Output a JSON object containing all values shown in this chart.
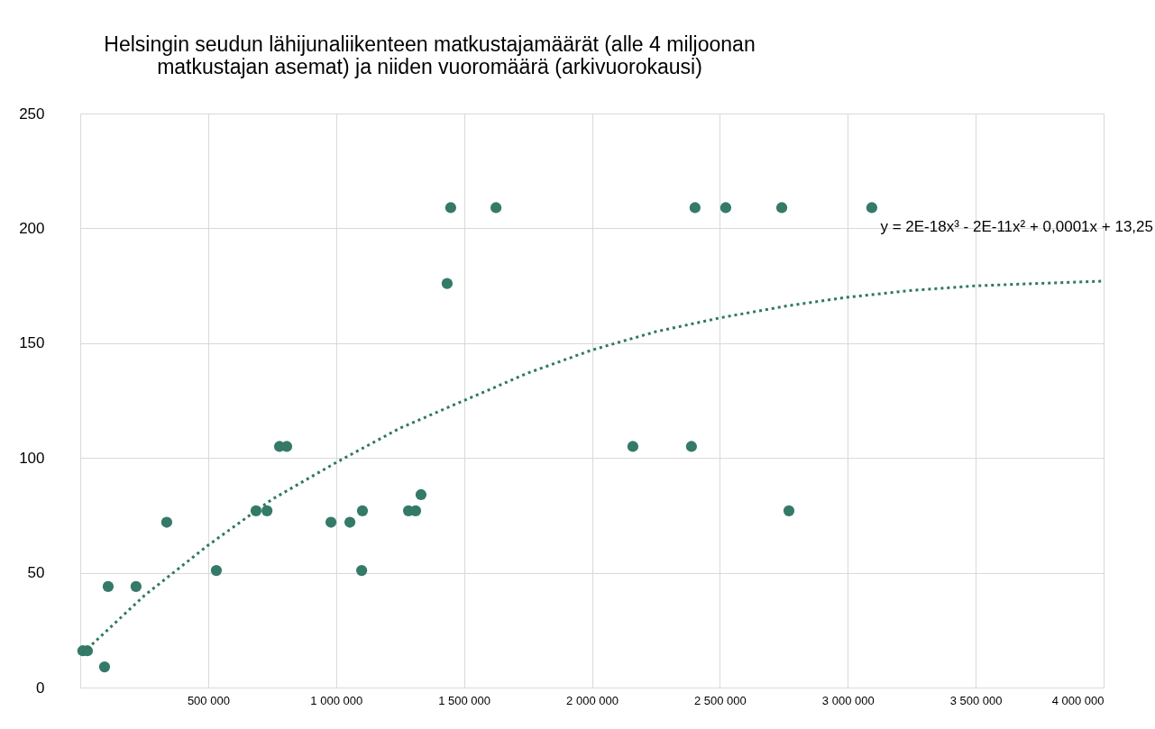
{
  "chart_data": {
    "type": "scatter",
    "title": [
      "Helsingin seudun lähijunaliikenteen matkustajamäärät (alle 4 miljoonan",
      "matkustajan asemat) ja niiden vuoromäärä (arkivuorokausi)"
    ],
    "series": [
      {
        "color": "#357a69",
        "marker": "circle",
        "x": [
          10000,
          28000,
          95000,
          109000,
          218000,
          338000,
          532000,
          687000,
          730000,
          779000,
          807000,
          980000,
          1054000,
          1100000,
          1103000,
          1283000,
          1311000,
          1332000,
          1434000,
          1448000,
          1625000,
          2160000,
          2389000,
          2403000,
          2523000,
          2742000,
          2770000,
          3094000
        ],
        "values": [
          16,
          16,
          9,
          44,
          44,
          72,
          51,
          77,
          77,
          105,
          105,
          72,
          72,
          51,
          77,
          77,
          77,
          84,
          176,
          209,
          209,
          105,
          105,
          209,
          209,
          209,
          77,
          209
        ]
      },
      {
        "type": "line",
        "color": "#2f7a5a",
        "line_style": "dotted",
        "marker": "none",
        "x": [
          10000,
          250000,
          500000,
          750000,
          1000000,
          1250000,
          1500000,
          1750000,
          2000000,
          2250000,
          2500000,
          2750000,
          3000000,
          3250000,
          3500000,
          3750000,
          4000000
        ],
        "values": [
          15,
          40,
          62,
          82,
          98,
          113,
          125,
          137,
          147,
          155,
          161,
          166,
          170,
          173,
          175,
          176,
          177
        ]
      }
    ],
    "xlim": [
      0,
      4000000
    ],
    "xticks": [
      {
        "value": 0,
        "label": null
      },
      {
        "value": 500000,
        "label": "500 000"
      },
      {
        "value": 1000000,
        "label": "1 000 000"
      },
      {
        "value": 1500000,
        "label": "1 500 000"
      },
      {
        "value": 2000000,
        "label": "2 000 000"
      },
      {
        "value": 2500000,
        "label": "2 500 000"
      },
      {
        "value": 3000000,
        "label": "3 000 000"
      },
      {
        "value": 3500000,
        "label": "3 500 000"
      },
      {
        "value": 4000000,
        "label": "4 000 000"
      }
    ],
    "ylim": [
      0,
      250
    ],
    "yticks": [
      0,
      50,
      100,
      150,
      200,
      250
    ],
    "grid": true,
    "legend": false,
    "annotations": [
      "y = 2E-18x³ - 2E-11x² + 0,0001x + 13,25"
    ]
  }
}
